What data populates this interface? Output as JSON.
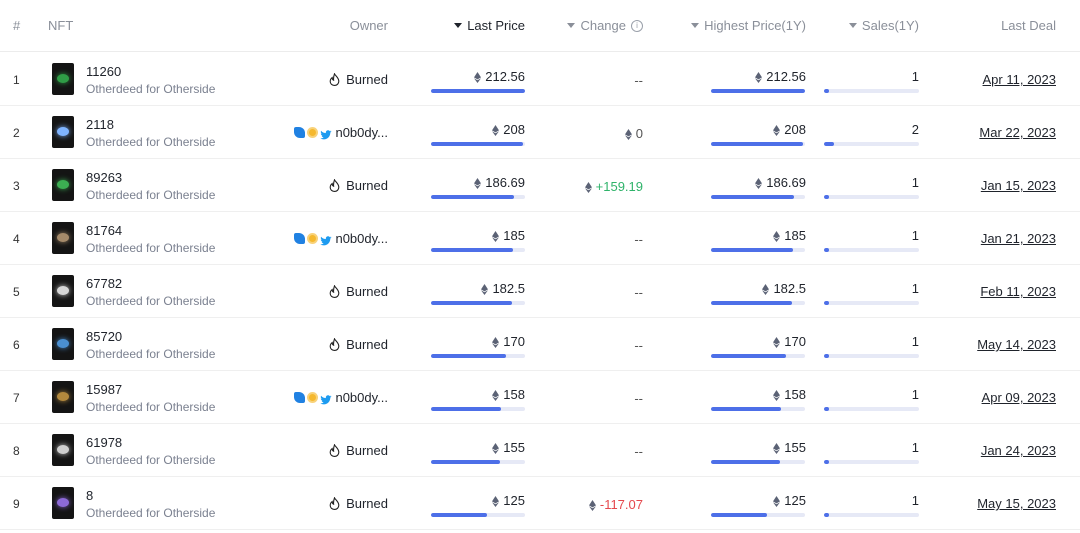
{
  "header": {
    "rank": "#",
    "nft": "NFT",
    "owner": "Owner",
    "last_price": "Last Price",
    "change": "Change",
    "highest_price": "Highest Price(1Y)",
    "sales": "Sales(1Y)",
    "last_deal": "Last Deal"
  },
  "colors": {
    "bar_fill": "#4d6fe8",
    "bar_track": "#e6e9f6",
    "positive": "#2fb36a",
    "negative": "#e5484d"
  },
  "rows": [
    {
      "rank": "1",
      "nft_id": "11260",
      "collection": "Otherdeed for Otherside",
      "owner_type": "burned",
      "owner": "Burned",
      "last_price": "212.56",
      "price_fraction": 1.0,
      "change": "--",
      "change_type": "none",
      "highest_price": "212.56",
      "highest_fraction": 1.0,
      "sales": "1",
      "sales_fraction": 0.05,
      "last_deal": "Apr 11, 2023",
      "thumb_color": "#2f9d46"
    },
    {
      "rank": "2",
      "nft_id": "2118",
      "collection": "Otherdeed for Otherside",
      "owner_type": "user",
      "owner": "n0b0dy...",
      "last_price": "208",
      "price_fraction": 0.98,
      "change": "0",
      "change_type": "neutral",
      "highest_price": "208",
      "highest_fraction": 0.98,
      "sales": "2",
      "sales_fraction": 0.1,
      "last_deal": "Mar 22, 2023",
      "thumb_color": "#7fb4ff"
    },
    {
      "rank": "3",
      "nft_id": "89263",
      "collection": "Otherdeed for Otherside",
      "owner_type": "burned",
      "owner": "Burned",
      "last_price": "186.69",
      "price_fraction": 0.88,
      "change": "+159.19",
      "change_type": "pos",
      "highest_price": "186.69",
      "highest_fraction": 0.88,
      "sales": "1",
      "sales_fraction": 0.05,
      "last_deal": "Jan 15, 2023",
      "thumb_color": "#3cae52"
    },
    {
      "rank": "4",
      "nft_id": "81764",
      "collection": "Otherdeed for Otherside",
      "owner_type": "user",
      "owner": "n0b0dy...",
      "last_price": "185",
      "price_fraction": 0.87,
      "change": "--",
      "change_type": "none",
      "highest_price": "185",
      "highest_fraction": 0.87,
      "sales": "1",
      "sales_fraction": 0.05,
      "last_deal": "Jan 21, 2023",
      "thumb_color": "#a58a6a"
    },
    {
      "rank": "5",
      "nft_id": "67782",
      "collection": "Otherdeed for Otherside",
      "owner_type": "burned",
      "owner": "Burned",
      "last_price": "182.5",
      "price_fraction": 0.86,
      "change": "--",
      "change_type": "none",
      "highest_price": "182.5",
      "highest_fraction": 0.86,
      "sales": "1",
      "sales_fraction": 0.05,
      "last_deal": "Feb 11, 2023",
      "thumb_color": "#d6d6d6"
    },
    {
      "rank": "6",
      "nft_id": "85720",
      "collection": "Otherdeed for Otherside",
      "owner_type": "burned",
      "owner": "Burned",
      "last_price": "170",
      "price_fraction": 0.8,
      "change": "--",
      "change_type": "none",
      "highest_price": "170",
      "highest_fraction": 0.8,
      "sales": "1",
      "sales_fraction": 0.05,
      "last_deal": "May 14, 2023",
      "thumb_color": "#4a8fd1"
    },
    {
      "rank": "7",
      "nft_id": "15987",
      "collection": "Otherdeed for Otherside",
      "owner_type": "user",
      "owner": "n0b0dy...",
      "last_price": "158",
      "price_fraction": 0.74,
      "change": "--",
      "change_type": "none",
      "highest_price": "158",
      "highest_fraction": 0.74,
      "sales": "1",
      "sales_fraction": 0.05,
      "last_deal": "Apr 09, 2023",
      "thumb_color": "#b3893d"
    },
    {
      "rank": "8",
      "nft_id": "61978",
      "collection": "Otherdeed for Otherside",
      "owner_type": "burned",
      "owner": "Burned",
      "last_price": "155",
      "price_fraction": 0.73,
      "change": "--",
      "change_type": "none",
      "highest_price": "155",
      "highest_fraction": 0.73,
      "sales": "1",
      "sales_fraction": 0.05,
      "last_deal": "Jan 24, 2023",
      "thumb_color": "#cfcfcf"
    },
    {
      "rank": "9",
      "nft_id": "8",
      "collection": "Otherdeed for Otherside",
      "owner_type": "burned",
      "owner": "Burned",
      "last_price": "125",
      "price_fraction": 0.59,
      "change": "-117.07",
      "change_type": "neg",
      "highest_price": "125",
      "highest_fraction": 0.59,
      "sales": "1",
      "sales_fraction": 0.05,
      "last_deal": "May 15, 2023",
      "thumb_color": "#8d6ad8"
    }
  ]
}
